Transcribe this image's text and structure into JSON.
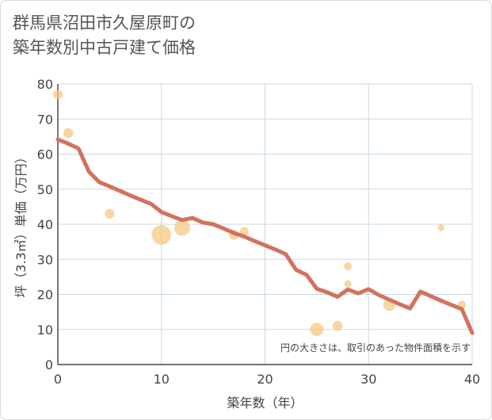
{
  "title_line1": "群馬県沼田市久屋原町の",
  "title_line2": "築年数別中古戸建て価格",
  "chart_data": {
    "type": "scatter+line",
    "title": "群馬県沼田市久屋原町の築年数別中古戸建て価格",
    "xlabel": "築年数（年）",
    "ylabel": "坪（3.3㎡）単価（万円）",
    "xlim": [
      0,
      40
    ],
    "ylim": [
      0,
      80
    ],
    "xticks": [
      0,
      10,
      20,
      30,
      40
    ],
    "yticks": [
      0,
      10,
      20,
      30,
      40,
      50,
      60,
      70,
      80
    ],
    "grid": true,
    "note": "円の大きさは、取引のあった物件面積を示す",
    "line_color": "#d2725d",
    "bubble_color": "#f5c67a",
    "bubbles": [
      {
        "x": 0,
        "y": 77,
        "size": 1
      },
      {
        "x": 1,
        "y": 66,
        "size": 1.1
      },
      {
        "x": 5,
        "y": 43,
        "size": 1
      },
      {
        "x": 10,
        "y": 37,
        "size": 4.2
      },
      {
        "x": 12,
        "y": 39,
        "size": 2.8
      },
      {
        "x": 17,
        "y": 37,
        "size": 1.1
      },
      {
        "x": 18,
        "y": 38,
        "size": 0.8
      },
      {
        "x": 25,
        "y": 10,
        "size": 2
      },
      {
        "x": 27,
        "y": 11,
        "size": 1.1
      },
      {
        "x": 28,
        "y": 28,
        "size": 0.7
      },
      {
        "x": 28,
        "y": 23,
        "size": 0.6
      },
      {
        "x": 32,
        "y": 17,
        "size": 1.6
      },
      {
        "x": 37,
        "y": 39,
        "size": 0.5
      },
      {
        "x": 39,
        "y": 17,
        "size": 0.8
      }
    ],
    "line": {
      "x": [
        0,
        1,
        2,
        3,
        4,
        5,
        6,
        7,
        8,
        9,
        10,
        11,
        12,
        13,
        14,
        15,
        16,
        17,
        18,
        19,
        20,
        21,
        22,
        23,
        24,
        25,
        26,
        27,
        28,
        29,
        30,
        31,
        32,
        33,
        34,
        35,
        36,
        37,
        38,
        39,
        40
      ],
      "y": [
        64.2,
        63,
        61.6,
        55,
        52,
        50.8,
        49.5,
        48.2,
        47,
        45.8,
        43.5,
        42.3,
        41.2,
        41.8,
        40.5,
        40,
        38.8,
        37.5,
        36.5,
        35.2,
        34,
        32.8,
        31.5,
        27,
        25.6,
        21.6,
        20.6,
        19.3,
        21.4,
        20.3,
        21.5,
        19.8,
        18.5,
        17.2,
        16,
        20.8,
        19.5,
        18.2,
        17,
        15.8,
        9
      ]
    }
  }
}
